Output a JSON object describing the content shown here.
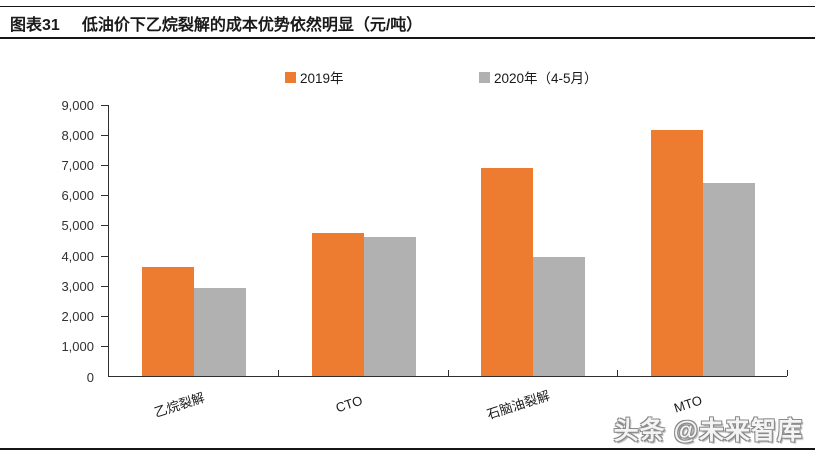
{
  "header": {
    "figure_label": "图表31",
    "title": "低油价下乙烷裂解的成本优势依然明显（元/吨）"
  },
  "legend": {
    "items": [
      {
        "label": "2019年",
        "color": "#ED7C31"
      },
      {
        "label": "2020年（4-5月）",
        "color": "#B1B1B1"
      }
    ]
  },
  "chart_data": {
    "type": "bar",
    "title": "低油价下乙烷裂解的成本优势依然明显",
    "unit": "元/吨",
    "categories": [
      "乙烷裂解",
      "CTO",
      "石脑油裂解",
      "MTO"
    ],
    "series": [
      {
        "name": "2019年",
        "color": "#ED7C31",
        "values": [
          3600,
          4720,
          6880,
          8150
        ]
      },
      {
        "name": "2020年（4-5月）",
        "color": "#B1B1B1",
        "values": [
          2900,
          4600,
          3950,
          6400
        ]
      }
    ],
    "ylim": [
      0,
      9000
    ],
    "ytick_step": 1000,
    "y_tick_labels": [
      "0",
      "1,000",
      "2,000",
      "3,000",
      "4,000",
      "5,000",
      "6,000",
      "7,000",
      "8,000",
      "9,000"
    ],
    "grid": false,
    "legend_position": "top"
  },
  "watermark": {
    "text": "头条 @未来智库"
  }
}
